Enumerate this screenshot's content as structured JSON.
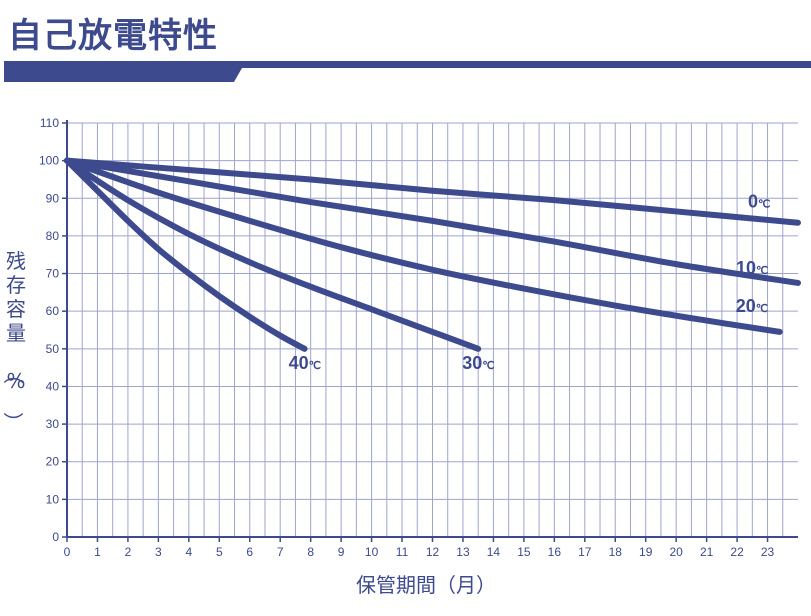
{
  "title": "自己放電特性",
  "colors": {
    "primary": "#3d4a8e",
    "grid": "#9fa4cd",
    "background": "#ffffff"
  },
  "chart_data": {
    "type": "line",
    "xlabel": "保管期間（月）",
    "ylabel": "残存容量（%）",
    "xlim": [
      0,
      24
    ],
    "ylim": [
      0,
      110
    ],
    "xticks": [
      0,
      1,
      2,
      3,
      4,
      5,
      6,
      7,
      8,
      9,
      10,
      11,
      12,
      13,
      14,
      15,
      16,
      17,
      18,
      19,
      20,
      21,
      22,
      23
    ],
    "yticks": [
      0,
      10,
      20,
      30,
      40,
      50,
      60,
      70,
      80,
      90,
      100,
      110
    ],
    "grid": true,
    "series": [
      {
        "name": "0℃",
        "label_num": "0",
        "label_unit": "℃",
        "x": [
          0,
          4,
          8,
          12,
          16,
          20,
          24
        ],
        "y": [
          100,
          97.5,
          95,
          92,
          89.5,
          86.5,
          83.5
        ]
      },
      {
        "name": "10℃",
        "label_num": "10",
        "label_unit": "℃",
        "x": [
          0,
          4,
          8,
          12,
          16,
          20,
          24
        ],
        "y": [
          100,
          94.5,
          89,
          84,
          78.5,
          72.5,
          67.5
        ]
      },
      {
        "name": "20℃",
        "label_num": "20",
        "label_unit": "℃",
        "x": [
          0,
          3,
          6,
          9,
          12,
          15,
          18,
          21,
          23.4
        ],
        "y": [
          100,
          91.5,
          84,
          77,
          71,
          66,
          61.5,
          57.5,
          54.5
        ]
      },
      {
        "name": "30℃",
        "label_num": "30",
        "label_unit": "℃",
        "x": [
          0,
          2,
          4,
          6,
          8,
          10,
          12,
          13.5
        ],
        "y": [
          100,
          89.5,
          80.5,
          73,
          66.5,
          60.5,
          54.5,
          50
        ]
      },
      {
        "name": "40℃",
        "label_num": "40",
        "label_unit": "℃",
        "x": [
          0,
          1,
          2,
          3,
          4,
          5,
          6,
          7,
          7.8
        ],
        "y": [
          100,
          92,
          84,
          76.5,
          70,
          64,
          58.5,
          53.5,
          50
        ]
      }
    ]
  }
}
